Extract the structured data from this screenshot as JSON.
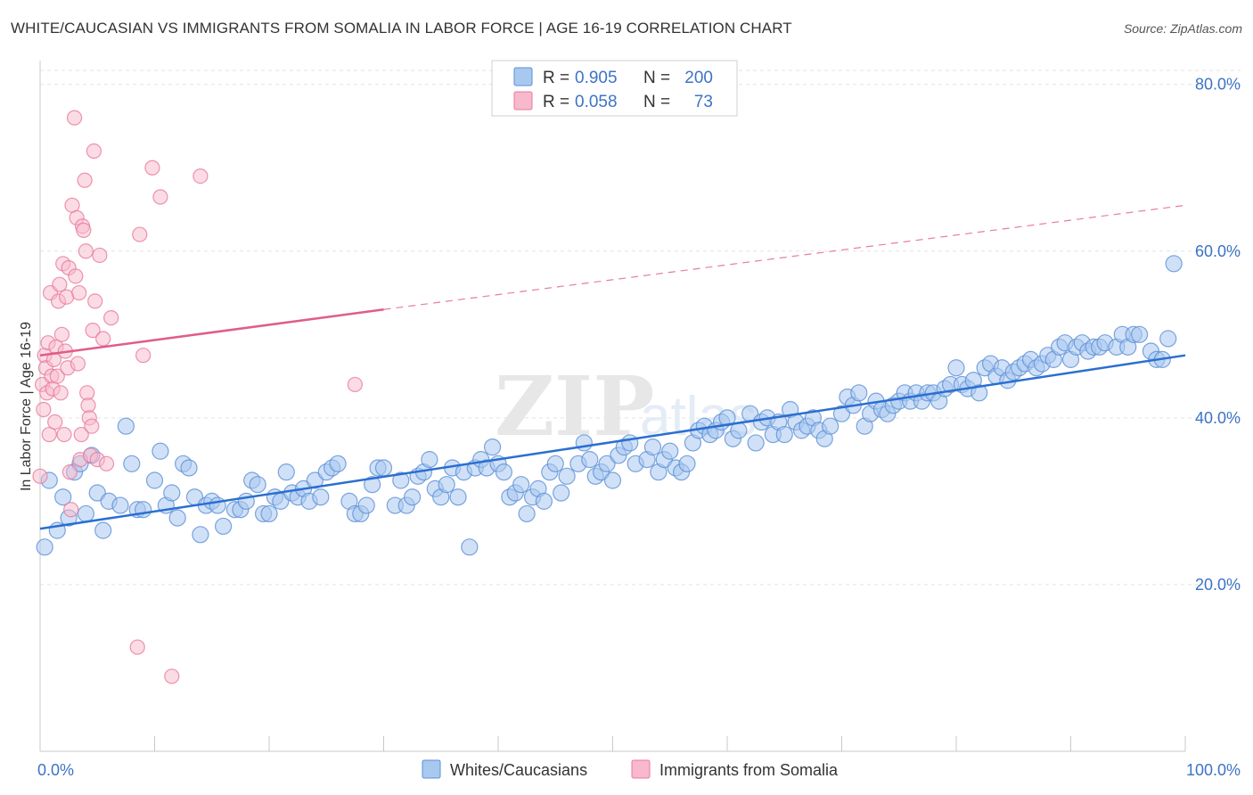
{
  "header": {
    "title": "WHITE/CAUCASIAN VS IMMIGRANTS FROM SOMALIA IN LABOR FORCE | AGE 16-19 CORRELATION CHART",
    "source": "Source: ZipAtlas.com"
  },
  "legend": {
    "r_label": "R =",
    "n_label": "N =",
    "rows": [
      {
        "r": "0.905",
        "n": "200",
        "color": "#a9c8f0",
        "stroke": "#5b8fd6"
      },
      {
        "r": "0.058",
        "n": "73",
        "color": "#f7b9cb",
        "stroke": "#e8799d"
      }
    ]
  },
  "bottom_legend": [
    {
      "label": "Whites/Caucasians",
      "color": "#a9c8f0",
      "stroke": "#5b8fd6"
    },
    {
      "label": "Immigrants from Somalia",
      "color": "#f7b9cb",
      "stroke": "#e8799d"
    }
  ],
  "watermark": {
    "big": "ZIP",
    "small": "atlas"
  },
  "chart_data": {
    "type": "scatter",
    "title": "WHITE/CAUCASIAN VS IMMIGRANTS FROM SOMALIA IN LABOR FORCE | AGE 16-19 CORRELATION CHART",
    "xlabel": "",
    "ylabel": "In Labor Force | Age 16-19",
    "xlim": [
      0,
      100
    ],
    "ylim": [
      0,
      82
    ],
    "x_tick_labels": [
      "0.0%",
      "100.0%"
    ],
    "y_ticks": [
      20,
      40,
      60,
      80
    ],
    "y_tick_labels": [
      "20.0%",
      "40.0%",
      "60.0%",
      "80.0%"
    ],
    "grid": true,
    "series": [
      {
        "name": "Whites/Caucasians",
        "color": "#5b8fd6",
        "fill": "#a9c8f0",
        "trend": {
          "x": [
            0,
            100
          ],
          "y": [
            26.7,
            47.5
          ],
          "style": "solid",
          "color": "#2a6fd1"
        },
        "points": [
          [
            0.4,
            24.5
          ],
          [
            0.8,
            32.5
          ],
          [
            1.5,
            26.5
          ],
          [
            2,
            30.5
          ],
          [
            2.5,
            28
          ],
          [
            3,
            33.5
          ],
          [
            3.5,
            34.5
          ],
          [
            4,
            28.5
          ],
          [
            4.5,
            35.5
          ],
          [
            5,
            31
          ],
          [
            5.5,
            26.5
          ],
          [
            6,
            30
          ],
          [
            7,
            29.5
          ],
          [
            7.5,
            39
          ],
          [
            8,
            34.5
          ],
          [
            8.5,
            29
          ],
          [
            9,
            29
          ],
          [
            10,
            32.5
          ],
          [
            10.5,
            36
          ],
          [
            11,
            29.5
          ],
          [
            11.5,
            31
          ],
          [
            12,
            28
          ],
          [
            12.5,
            34.5
          ],
          [
            13,
            34
          ],
          [
            13.5,
            30.5
          ],
          [
            14,
            26
          ],
          [
            14.5,
            29.5
          ],
          [
            15,
            30
          ],
          [
            15.5,
            29.5
          ],
          [
            16,
            27
          ],
          [
            17,
            29
          ],
          [
            17.5,
            29
          ],
          [
            18,
            30
          ],
          [
            18.5,
            32.5
          ],
          [
            19,
            32
          ],
          [
            19.5,
            28.5
          ],
          [
            20,
            28.5
          ],
          [
            20.5,
            30.5
          ],
          [
            21,
            30
          ],
          [
            21.5,
            33.5
          ],
          [
            22,
            31
          ],
          [
            22.5,
            30.5
          ],
          [
            23,
            31.5
          ],
          [
            23.5,
            30
          ],
          [
            24,
            32.5
          ],
          [
            24.5,
            30.5
          ],
          [
            25,
            33.5
          ],
          [
            25.5,
            34
          ],
          [
            26,
            34.5
          ],
          [
            27,
            30
          ],
          [
            27.5,
            28.5
          ],
          [
            28,
            28.5
          ],
          [
            28.5,
            29.5
          ],
          [
            29,
            32
          ],
          [
            29.5,
            34
          ],
          [
            30,
            34
          ],
          [
            31,
            29.5
          ],
          [
            31.5,
            32.5
          ],
          [
            32,
            29.5
          ],
          [
            32.5,
            30.5
          ],
          [
            33,
            33
          ],
          [
            33.5,
            33.5
          ],
          [
            34,
            35
          ],
          [
            34.5,
            31.5
          ],
          [
            35,
            30.5
          ],
          [
            35.5,
            32
          ],
          [
            36,
            34
          ],
          [
            36.5,
            30.5
          ],
          [
            37,
            33.5
          ],
          [
            37.5,
            24.5
          ],
          [
            38,
            34
          ],
          [
            38.5,
            35
          ],
          [
            39,
            34
          ],
          [
            39.5,
            36.5
          ],
          [
            40,
            34.5
          ],
          [
            40.5,
            33.5
          ],
          [
            41,
            30.5
          ],
          [
            41.5,
            31
          ],
          [
            42,
            32
          ],
          [
            42.5,
            28.5
          ],
          [
            43,
            30.5
          ],
          [
            43.5,
            31.5
          ],
          [
            44,
            30
          ],
          [
            44.5,
            33.5
          ],
          [
            45,
            34.5
          ],
          [
            45.5,
            31
          ],
          [
            46,
            33
          ],
          [
            47,
            34.5
          ],
          [
            47.5,
            37
          ],
          [
            48,
            35
          ],
          [
            48.5,
            33
          ],
          [
            49,
            33.5
          ],
          [
            49.5,
            34.5
          ],
          [
            50,
            32.5
          ],
          [
            50.5,
            35.5
          ],
          [
            51,
            36.5
          ],
          [
            51.5,
            37
          ],
          [
            52,
            34.5
          ],
          [
            53,
            35
          ],
          [
            53.5,
            36.5
          ],
          [
            54,
            33.5
          ],
          [
            54.5,
            35
          ],
          [
            55,
            36
          ],
          [
            55.5,
            34
          ],
          [
            56,
            33.5
          ],
          [
            56.5,
            34.5
          ],
          [
            57,
            37
          ],
          [
            57.5,
            38.5
          ],
          [
            58,
            39
          ],
          [
            58.5,
            38
          ],
          [
            59,
            38.5
          ],
          [
            59.5,
            39.5
          ],
          [
            60,
            40
          ],
          [
            60.5,
            37.5
          ],
          [
            61,
            38.5
          ],
          [
            62,
            40.5
          ],
          [
            62.5,
            37
          ],
          [
            63,
            39.5
          ],
          [
            63.5,
            40
          ],
          [
            64,
            38
          ],
          [
            64.5,
            39.5
          ],
          [
            65,
            38
          ],
          [
            65.5,
            41
          ],
          [
            66,
            39.5
          ],
          [
            66.5,
            38.5
          ],
          [
            67,
            39
          ],
          [
            67.5,
            40
          ],
          [
            68,
            38.5
          ],
          [
            68.5,
            37.5
          ],
          [
            69,
            39
          ],
          [
            70,
            40.5
          ],
          [
            70.5,
            42.5
          ],
          [
            71,
            41.5
          ],
          [
            71.5,
            43
          ],
          [
            72,
            39
          ],
          [
            72.5,
            40.5
          ],
          [
            73,
            42
          ],
          [
            73.5,
            41
          ],
          [
            74,
            40.5
          ],
          [
            74.5,
            41.5
          ],
          [
            75,
            42
          ],
          [
            75.5,
            43
          ],
          [
            76,
            42
          ],
          [
            76.5,
            43
          ],
          [
            77,
            42
          ],
          [
            77.5,
            43
          ],
          [
            78,
            43
          ],
          [
            78.5,
            42
          ],
          [
            79,
            43.5
          ],
          [
            79.5,
            44
          ],
          [
            80,
            46
          ],
          [
            80.5,
            44
          ],
          [
            81,
            43.5
          ],
          [
            81.5,
            44.5
          ],
          [
            82,
            43
          ],
          [
            82.5,
            46
          ],
          [
            83,
            46.5
          ],
          [
            83.5,
            45
          ],
          [
            84,
            46
          ],
          [
            84.5,
            44.5
          ],
          [
            85,
            45.5
          ],
          [
            85.5,
            46
          ],
          [
            86,
            46.5
          ],
          [
            86.5,
            47
          ],
          [
            87,
            46
          ],
          [
            87.5,
            46.5
          ],
          [
            88,
            47.5
          ],
          [
            88.5,
            47
          ],
          [
            89,
            48.5
          ],
          [
            89.5,
            49
          ],
          [
            90,
            47
          ],
          [
            90.5,
            48.5
          ],
          [
            91,
            49
          ],
          [
            91.5,
            48
          ],
          [
            92,
            48.5
          ],
          [
            92.5,
            48.5
          ],
          [
            93,
            49
          ],
          [
            94,
            48.5
          ],
          [
            94.5,
            50
          ],
          [
            95,
            48.5
          ],
          [
            95.5,
            50
          ],
          [
            96,
            50
          ],
          [
            97,
            48
          ],
          [
            97.5,
            47
          ],
          [
            98,
            47
          ],
          [
            98.5,
            49.5
          ],
          [
            99,
            58.5
          ]
        ]
      },
      {
        "name": "Immigrants from Somalia",
        "color": "#e8799d",
        "fill": "#f7b9cb",
        "trend": {
          "x": [
            0,
            30
          ],
          "y": [
            47.5,
            53
          ],
          "x_dashed_end": 100,
          "y_dashed_end": 65.5,
          "style": "solid-then-dashed",
          "color": "#e05c8a"
        },
        "points": [
          [
            0,
            33
          ],
          [
            0.2,
            44
          ],
          [
            0.3,
            41
          ],
          [
            0.4,
            47.5
          ],
          [
            0.5,
            46
          ],
          [
            0.6,
            43
          ],
          [
            0.7,
            49
          ],
          [
            0.8,
            38
          ],
          [
            0.9,
            55
          ],
          [
            1,
            45
          ],
          [
            1.1,
            43.5
          ],
          [
            1.2,
            47
          ],
          [
            1.3,
            39.5
          ],
          [
            1.4,
            48.5
          ],
          [
            1.5,
            45
          ],
          [
            1.6,
            54
          ],
          [
            1.7,
            56
          ],
          [
            1.8,
            43
          ],
          [
            1.9,
            50
          ],
          [
            2,
            58.5
          ],
          [
            2.1,
            38
          ],
          [
            2.2,
            48
          ],
          [
            2.3,
            54.5
          ],
          [
            2.4,
            46
          ],
          [
            2.5,
            58
          ],
          [
            2.6,
            33.5
          ],
          [
            2.7,
            29
          ],
          [
            2.8,
            65.5
          ],
          [
            3,
            76
          ],
          [
            3.1,
            57
          ],
          [
            3.2,
            64
          ],
          [
            3.3,
            46.5
          ],
          [
            3.4,
            55
          ],
          [
            3.5,
            35
          ],
          [
            3.6,
            38
          ],
          [
            3.7,
            63
          ],
          [
            3.8,
            62.5
          ],
          [
            3.9,
            68.5
          ],
          [
            4,
            60
          ],
          [
            4.1,
            43
          ],
          [
            4.2,
            41.5
          ],
          [
            4.3,
            40
          ],
          [
            4.4,
            35.5
          ],
          [
            4.5,
            39
          ],
          [
            4.6,
            50.5
          ],
          [
            4.7,
            72
          ],
          [
            4.8,
            54
          ],
          [
            5,
            35
          ],
          [
            5.2,
            59.5
          ],
          [
            5.5,
            49.5
          ],
          [
            5.8,
            34.5
          ],
          [
            6.2,
            52
          ],
          [
            8.5,
            12.5
          ],
          [
            8.7,
            62
          ],
          [
            9,
            47.5
          ],
          [
            9.8,
            70
          ],
          [
            10.5,
            66.5
          ],
          [
            11.5,
            9
          ],
          [
            14,
            69
          ],
          [
            27.5,
            44
          ]
        ]
      }
    ]
  }
}
